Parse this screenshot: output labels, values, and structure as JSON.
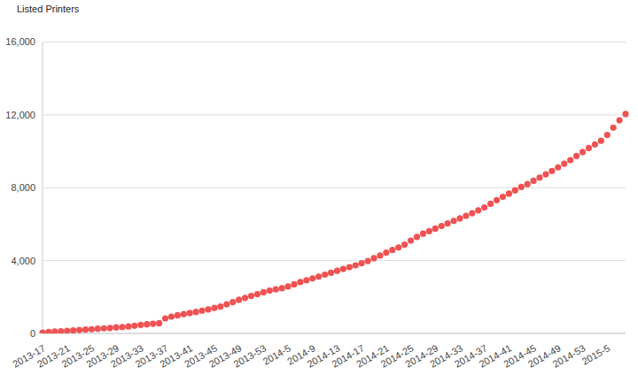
{
  "chart_data": {
    "type": "line",
    "categories": [
      "2013-17",
      null,
      null,
      null,
      "2013-21",
      null,
      null,
      null,
      "2013-25",
      null,
      null,
      null,
      "2013-29",
      null,
      null,
      null,
      "2013-33",
      null,
      null,
      null,
      "2013-37",
      null,
      null,
      null,
      "2013-41",
      null,
      null,
      null,
      "2013-45",
      null,
      null,
      null,
      "2013-49",
      null,
      null,
      null,
      "2013-53",
      null,
      null,
      null,
      "2014-5",
      null,
      null,
      null,
      "2014-9",
      null,
      null,
      null,
      "2014-13",
      null,
      null,
      null,
      "2014-17",
      null,
      null,
      null,
      "2014-21",
      null,
      null,
      null,
      "2014-25",
      null,
      null,
      null,
      "2014-29",
      null,
      null,
      null,
      "2014-33",
      null,
      null,
      null,
      "2014-37",
      null,
      null,
      null,
      "2014-41",
      null,
      null,
      null,
      "2014-45",
      null,
      null,
      null,
      "2014-49",
      null,
      null,
      null,
      "2014-53",
      null,
      null,
      null,
      "2015-5",
      null,
      null,
      null
    ],
    "series": [
      {
        "name": "Listed Printers",
        "color": "#ee5253",
        "marker": "circle",
        "line_style": "none",
        "values": [
          40,
          80,
          100,
          120,
          140,
          160,
          190,
          210,
          230,
          260,
          280,
          300,
          330,
          350,
          380,
          420,
          470,
          500,
          530,
          560,
          820,
          920,
          1000,
          1060,
          1120,
          1180,
          1250,
          1320,
          1400,
          1480,
          1600,
          1720,
          1850,
          1950,
          2060,
          2160,
          2260,
          2350,
          2420,
          2480,
          2580,
          2700,
          2820,
          2920,
          3020,
          3120,
          3230,
          3330,
          3440,
          3540,
          3640,
          3740,
          3860,
          3980,
          4130,
          4280,
          4440,
          4580,
          4720,
          4880,
          5100,
          5300,
          5480,
          5620,
          5760,
          5900,
          6040,
          6180,
          6320,
          6460,
          6600,
          6760,
          6920,
          7120,
          7320,
          7500,
          7680,
          7860,
          8040,
          8200,
          8380,
          8560,
          8740,
          8920,
          9120,
          9320,
          9520,
          9740,
          9960,
          10180,
          10380,
          10580,
          10900,
          11300,
          11700,
          12050
        ]
      }
    ],
    "ylim": [
      0,
      16000
    ],
    "yticks": [
      0,
      {
        "value": 4000,
        "label": "4,000"
      },
      {
        "value": 8000,
        "label": "8,000"
      },
      {
        "value": 12000,
        "label": "12,000"
      },
      {
        "value": 16000,
        "label": "16,000"
      }
    ],
    "grid": true,
    "legend": "top-left"
  }
}
